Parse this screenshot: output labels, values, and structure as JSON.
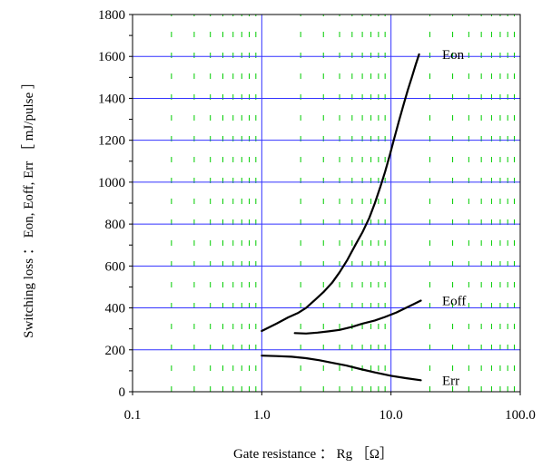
{
  "chart_data": {
    "type": "line",
    "title": "",
    "xlabel": "Gate resistance ： Rg ［Ω］",
    "ylabel": "Switching loss ： Eon, Eoff, Err ［ mJ/pulse ］",
    "xscale": "log",
    "xlim": [
      0.1,
      100.0
    ],
    "ylim": [
      0,
      1800
    ],
    "x_ticks": [
      0.1,
      1.0,
      10.0,
      100.0
    ],
    "x_tick_labels": [
      "0.1",
      "1.0",
      "10.0",
      "100.0"
    ],
    "y_ticks": [
      0,
      200,
      400,
      600,
      800,
      1000,
      1200,
      1400,
      1600,
      1800
    ],
    "y_tick_labels": [
      "0",
      "200",
      "400",
      "600",
      "800",
      "1000",
      "1200",
      "1400",
      "1600",
      "1800"
    ],
    "grid": {
      "major": true,
      "major_color": "#3333ff",
      "minor_x": true,
      "minor_color": "#00cc00",
      "minor_style": "dashed"
    },
    "series_color": "#000000",
    "series": [
      {
        "name": "Eon",
        "x": [
          1.0,
          1.3,
          1.6,
          1.9,
          2.2,
          2.6,
          3.0,
          3.5,
          4.0,
          4.6,
          5.3,
          6.0,
          6.8,
          7.5,
          8.3,
          9.0,
          9.8,
          10.6,
          11.5,
          12.5,
          13.5,
          14.5,
          15.5,
          16.5
        ],
        "y": [
          290,
          325,
          355,
          375,
          400,
          440,
          475,
          520,
          570,
          630,
          700,
          760,
          830,
          900,
          980,
          1050,
          1130,
          1210,
          1290,
          1370,
          1440,
          1500,
          1560,
          1610
        ]
      },
      {
        "name": "Eoff",
        "x": [
          1.8,
          2.2,
          2.7,
          3.3,
          4.0,
          5.0,
          6.0,
          7.5,
          9.0,
          11.0,
          13.0,
          15.0,
          17.0
        ],
        "y": [
          280,
          278,
          282,
          288,
          295,
          310,
          325,
          340,
          357,
          378,
          400,
          418,
          435
        ]
      },
      {
        "name": "Err",
        "x": [
          1.0,
          1.3,
          1.7,
          2.2,
          2.8,
          3.5,
          4.5,
          5.8,
          7.5,
          10.0,
          13.0,
          17.0
        ],
        "y": [
          172,
          170,
          167,
          160,
          150,
          138,
          125,
          108,
          92,
          76,
          65,
          55
        ]
      }
    ]
  }
}
